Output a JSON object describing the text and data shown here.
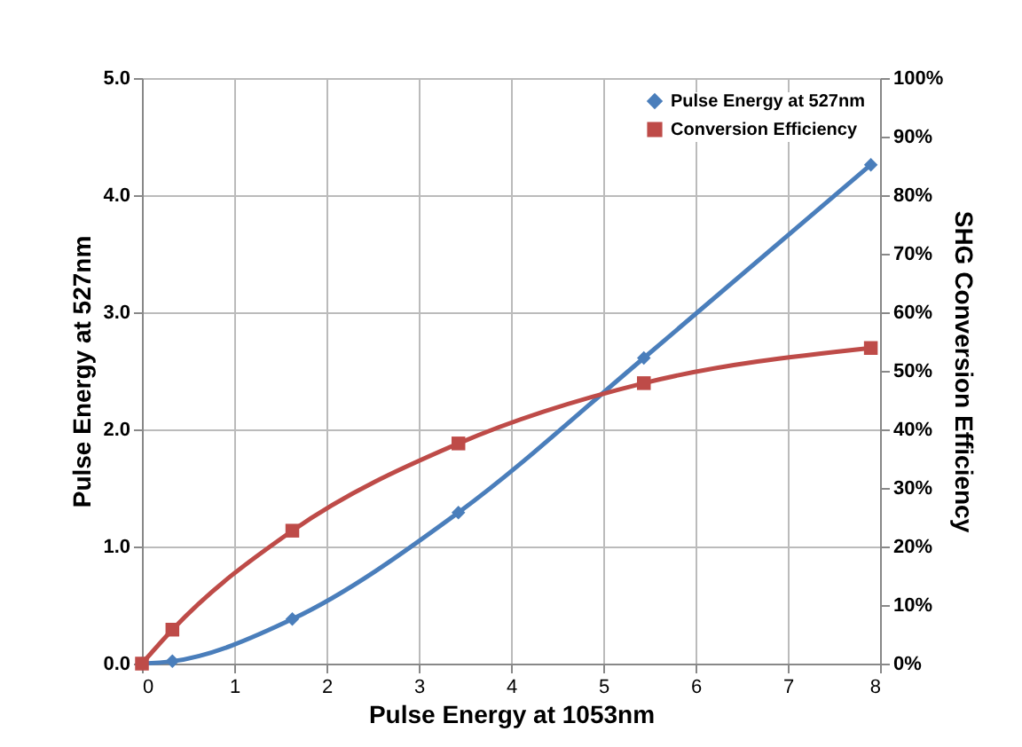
{
  "chart_data": {
    "type": "line",
    "xlabel": "Pulse Energy at 1053nm",
    "ylabel": "Pulse Energy at 527nm",
    "y2label": "SHG Conversion Efficiency",
    "xlim": [
      0,
      8
    ],
    "xticks": [
      0,
      1,
      2,
      3,
      4,
      5,
      6,
      7,
      8
    ],
    "ylim": [
      0,
      5
    ],
    "yticks": [
      {
        "value": 0,
        "label": "0.0"
      },
      {
        "value": 1,
        "label": "1.0"
      },
      {
        "value": 2,
        "label": "2.0"
      },
      {
        "value": 3,
        "label": "3.0"
      },
      {
        "value": 4,
        "label": "4.0"
      },
      {
        "value": 5,
        "label": "5.0"
      }
    ],
    "y2lim": [
      0,
      100
    ],
    "y2ticks": [
      {
        "value": 0,
        "label": "0%"
      },
      {
        "value": 10,
        "label": "10%"
      },
      {
        "value": 20,
        "label": "20%"
      },
      {
        "value": 30,
        "label": "30%"
      },
      {
        "value": 40,
        "label": "40%"
      },
      {
        "value": 50,
        "label": "50%"
      },
      {
        "value": 60,
        "label": "60%"
      },
      {
        "value": 70,
        "label": "70%"
      },
      {
        "value": 80,
        "label": "80%"
      },
      {
        "value": 90,
        "label": "90%"
      },
      {
        "value": 100,
        "label": "100%"
      }
    ],
    "grid": true,
    "legend": "top right",
    "line_style": "solid",
    "series": [
      {
        "name": "Pulse Energy at 527nm",
        "color": "#4a7ebb",
        "marker": "diamond",
        "x": [
          0,
          0.33,
          1.63,
          3.43,
          5.44,
          7.9
        ],
        "values": [
          0,
          0.02,
          0.38,
          1.29,
          2.61,
          4.26
        ]
      },
      {
        "name": "Conversion Efficiency",
        "color": "#be4b48",
        "marker": "square",
        "axis": "y2",
        "x": [
          0,
          0.33,
          1.63,
          3.43,
          5.44,
          7.9
        ],
        "values": [
          0,
          5.8,
          22.7,
          37.6,
          47.9,
          53.9
        ]
      }
    ]
  }
}
